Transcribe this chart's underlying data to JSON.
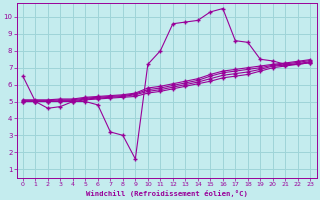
{
  "bg_color": "#c4ecee",
  "grid_color": "#9ed4d8",
  "line_color": "#990099",
  "xlabel": "Windchill (Refroidissement éolien,°C)",
  "xlim": [
    -0.5,
    23.5
  ],
  "ylim": [
    0.5,
    10.8
  ],
  "yticks": [
    1,
    2,
    3,
    4,
    5,
    6,
    7,
    8,
    9,
    10
  ],
  "xticks": [
    0,
    1,
    2,
    3,
    4,
    5,
    6,
    7,
    8,
    9,
    10,
    11,
    12,
    13,
    14,
    15,
    16,
    17,
    18,
    19,
    20,
    21,
    22,
    23
  ],
  "series1_x": [
    0,
    1,
    2,
    3,
    4,
    5,
    6,
    7,
    8,
    9,
    10,
    11,
    12,
    13,
    14,
    15,
    16,
    17,
    18,
    19,
    20,
    21,
    22,
    23
  ],
  "series1_y": [
    6.5,
    5.0,
    4.6,
    4.7,
    5.0,
    5.0,
    4.8,
    3.2,
    3.0,
    1.6,
    7.2,
    8.0,
    9.6,
    9.7,
    9.8,
    10.3,
    10.5,
    8.6,
    8.5,
    7.5,
    7.4,
    7.2,
    7.2,
    7.3
  ],
  "series2_x": [
    0,
    1,
    2,
    3,
    4,
    5,
    6,
    7,
    8,
    9,
    10,
    11,
    12,
    13,
    14,
    15,
    16,
    17,
    18,
    19,
    20,
    21,
    22,
    23
  ],
  "series2_y": [
    5.0,
    5.0,
    5.0,
    5.0,
    5.0,
    5.1,
    5.15,
    5.2,
    5.25,
    5.3,
    5.5,
    5.6,
    5.75,
    5.9,
    6.05,
    6.2,
    6.4,
    6.5,
    6.6,
    6.8,
    7.0,
    7.1,
    7.2,
    7.3
  ],
  "series3_x": [
    0,
    1,
    2,
    3,
    4,
    5,
    6,
    7,
    8,
    9,
    10,
    11,
    12,
    13,
    14,
    15,
    16,
    17,
    18,
    19,
    20,
    21,
    22,
    23
  ],
  "series3_y": [
    5.0,
    5.0,
    5.0,
    5.05,
    5.05,
    5.15,
    5.2,
    5.25,
    5.3,
    5.4,
    5.6,
    5.7,
    5.85,
    6.0,
    6.15,
    6.35,
    6.55,
    6.65,
    6.75,
    6.9,
    7.1,
    7.15,
    7.25,
    7.35
  ],
  "series4_x": [
    0,
    1,
    2,
    3,
    4,
    5,
    6,
    7,
    8,
    9,
    10,
    11,
    12,
    13,
    14,
    15,
    16,
    17,
    18,
    19,
    20,
    21,
    22,
    23
  ],
  "series4_y": [
    5.05,
    5.05,
    5.05,
    5.1,
    5.1,
    5.2,
    5.25,
    5.3,
    5.35,
    5.45,
    5.7,
    5.8,
    5.95,
    6.1,
    6.25,
    6.5,
    6.7,
    6.8,
    6.9,
    7.0,
    7.15,
    7.22,
    7.32,
    7.42
  ],
  "series5_x": [
    0,
    1,
    2,
    3,
    4,
    5,
    6,
    7,
    8,
    9,
    10,
    11,
    12,
    13,
    14,
    15,
    16,
    17,
    18,
    19,
    20,
    21,
    22,
    23
  ],
  "series5_y": [
    5.1,
    5.1,
    5.1,
    5.15,
    5.15,
    5.25,
    5.3,
    5.35,
    5.4,
    5.5,
    5.8,
    5.9,
    6.05,
    6.2,
    6.35,
    6.6,
    6.8,
    6.9,
    7.0,
    7.1,
    7.2,
    7.28,
    7.38,
    7.48
  ]
}
